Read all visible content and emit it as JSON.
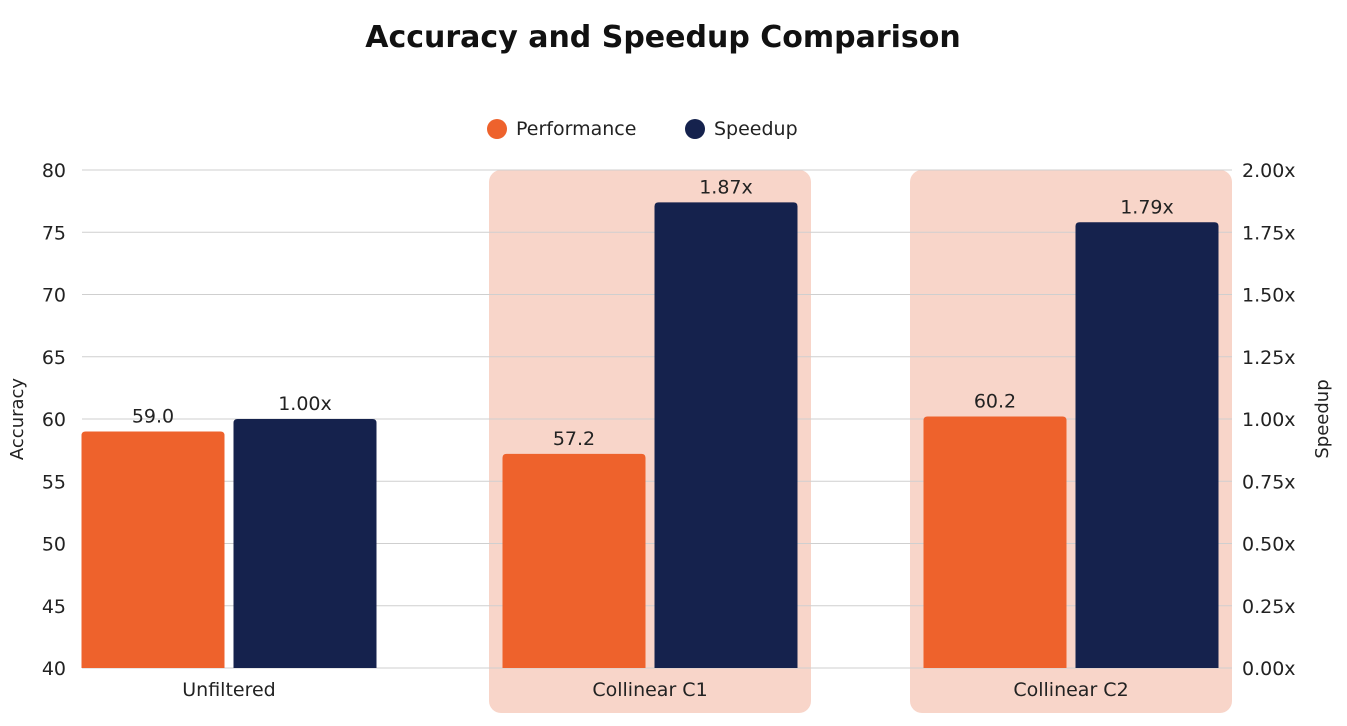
{
  "chart_data": {
    "type": "bar",
    "title": "Accuracy and Speedup Comparison",
    "categories": [
      "Unfiltered",
      "Collinear C1",
      "Collinear C2"
    ],
    "highlighted_categories": [
      "Collinear C1",
      "Collinear C2"
    ],
    "series": [
      {
        "name": "Performance",
        "axis": "left",
        "values": [
          59.0,
          57.2,
          60.2
        ],
        "labels": [
          "59.0",
          "57.2",
          "60.2"
        ]
      },
      {
        "name": "Speedup",
        "axis": "right",
        "values": [
          1.0,
          1.87,
          1.79
        ],
        "labels": [
          "1.00x",
          "1.87x",
          "1.79x"
        ]
      }
    ],
    "ylabel": "Accuracy",
    "y2label": "Speedup",
    "ylim": [
      40,
      80
    ],
    "y2lim": [
      0,
      2
    ],
    "yticks": [
      "40",
      "45",
      "50",
      "55",
      "60",
      "65",
      "70",
      "75",
      "80"
    ],
    "y2ticks": [
      "0.00x",
      "0.25x",
      "0.50x",
      "0.75x",
      "1.00x",
      "1.25x",
      "1.50x",
      "1.75x",
      "2.00x"
    ],
    "grid": true,
    "legend_position": "top-center",
    "colors": {
      "Performance": "#ee622c",
      "Speedup": "#15224d",
      "highlight": "#f8d5c9"
    }
  }
}
